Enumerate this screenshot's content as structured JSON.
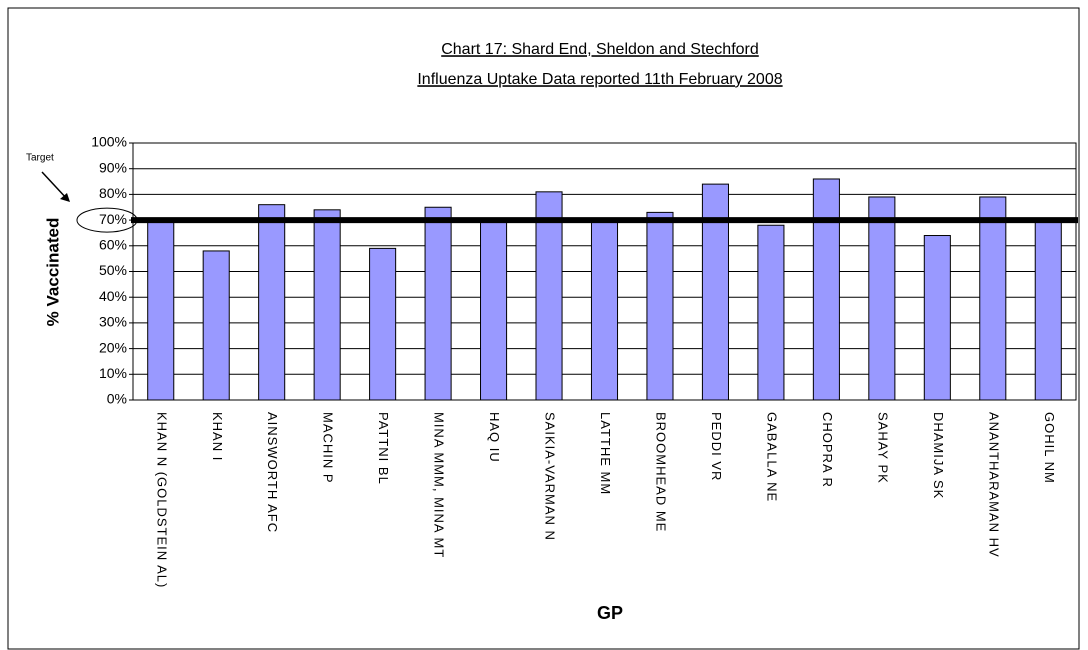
{
  "chart_data": {
    "type": "bar",
    "title": "Chart 17: Shard End, Sheldon and Stechford",
    "subtitle": "Influenza Uptake Data reported 11th February 2008",
    "y_label": "% Vaccinated",
    "x_label": "GP",
    "annotation": "Target",
    "target": 70,
    "categories": [
      "KHAN N (GOLDSTEIN AL)",
      "KHAN I",
      "AINSWORTH AFC",
      "MACHIN P",
      "PATTNI BL",
      "MINA MMM, MINA MT",
      "HAQ IU",
      "SAIKIA-VARMAN N",
      "LATTHE MM",
      "BROOMHEAD ME",
      "PEDDI VR",
      "GABALLA NE",
      "CHOPRA R",
      "SAHAY PK",
      "DHAMIJA SK",
      "ANANTHARAMAN HV",
      "GOHIL NM"
    ],
    "values": [
      70,
      58,
      76,
      74,
      59,
      75,
      70,
      81,
      70,
      73,
      84,
      68,
      86,
      79,
      64,
      79,
      70
    ],
    "color": "#9999ff",
    "ylim": [
      0,
      100
    ],
    "yticks": [
      {
        "value": 0,
        "label": "0%"
      },
      {
        "value": 10,
        "label": "10%"
      },
      {
        "value": 20,
        "label": "20%"
      },
      {
        "value": 30,
        "label": "30%"
      },
      {
        "value": 40,
        "label": "40%"
      },
      {
        "value": 50,
        "label": "50%"
      },
      {
        "value": 60,
        "label": "60%"
      },
      {
        "value": 70,
        "label": "70%"
      },
      {
        "value": 80,
        "label": "80%"
      },
      {
        "value": 90,
        "label": "90%"
      },
      {
        "value": 100,
        "label": "100%"
      }
    ],
    "grid": true
  }
}
